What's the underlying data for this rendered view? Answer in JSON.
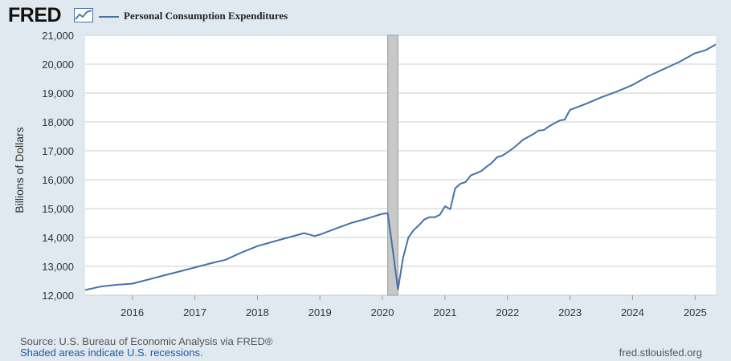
{
  "header": {
    "logo_text": "FRED",
    "legend_label": "Personal Consumption Expenditures"
  },
  "chart_data": {
    "type": "line",
    "title": "",
    "xlabel": "",
    "ylabel": "Billions of Dollars",
    "ylim": [
      12000,
      21000
    ],
    "yticks": [
      12000,
      13000,
      14000,
      15000,
      16000,
      17000,
      18000,
      19000,
      20000,
      21000
    ],
    "ytick_labels": [
      "12,000",
      "13,000",
      "14,000",
      "15,000",
      "16,000",
      "17,000",
      "18,000",
      "19,000",
      "20,000",
      "21,000"
    ],
    "xlim": [
      "2015-04-01",
      "2025-05-01"
    ],
    "xtick_labels": [
      "2016",
      "2017",
      "2018",
      "2019",
      "2020",
      "2021",
      "2022",
      "2023",
      "2024",
      "2025"
    ],
    "grid": true,
    "legend": "top-left",
    "recessions": [
      {
        "start": "2020-02-01",
        "end": "2020-04-01"
      }
    ],
    "series": [
      {
        "name": "Personal Consumption Expenditures",
        "color": "#4572a7",
        "x": [
          "2015-04-01",
          "2015-07-01",
          "2015-10-01",
          "2016-01-01",
          "2016-04-01",
          "2016-07-01",
          "2016-10-01",
          "2017-01-01",
          "2017-04-01",
          "2017-07-01",
          "2017-10-01",
          "2018-01-01",
          "2018-04-01",
          "2018-07-01",
          "2018-10-01",
          "2018-12-01",
          "2019-01-01",
          "2019-04-01",
          "2019-07-01",
          "2019-10-01",
          "2020-01-01",
          "2020-02-01",
          "2020-03-01",
          "2020-04-01",
          "2020-05-01",
          "2020-06-01",
          "2020-07-01",
          "2020-08-01",
          "2020-09-01",
          "2020-10-01",
          "2020-11-01",
          "2020-12-01",
          "2021-01-01",
          "2021-02-01",
          "2021-03-01",
          "2021-04-01",
          "2021-05-01",
          "2021-06-01",
          "2021-07-01",
          "2021-08-01",
          "2021-09-01",
          "2021-10-01",
          "2021-11-01",
          "2021-12-01",
          "2022-01-01",
          "2022-02-01",
          "2022-03-01",
          "2022-04-01",
          "2022-05-01",
          "2022-06-01",
          "2022-07-01",
          "2022-08-01",
          "2022-09-01",
          "2022-10-01",
          "2022-11-01",
          "2022-12-01",
          "2023-01-01",
          "2023-04-01",
          "2023-07-01",
          "2023-10-01",
          "2024-01-01",
          "2024-04-01",
          "2024-07-01",
          "2024-10-01",
          "2025-01-01",
          "2025-03-01",
          "2025-05-01"
        ],
        "values": [
          12180,
          12300,
          12360,
          12400,
          12540,
          12680,
          12820,
          12960,
          13100,
          13230,
          13480,
          13700,
          13850,
          14000,
          14150,
          14050,
          14100,
          14300,
          14500,
          14650,
          14820,
          14840,
          13600,
          12200,
          13300,
          14000,
          14250,
          14420,
          14620,
          14700,
          14700,
          14780,
          15080,
          14980,
          15700,
          15860,
          15920,
          16150,
          16220,
          16300,
          16450,
          16580,
          16780,
          16830,
          16950,
          17080,
          17220,
          17380,
          17480,
          17580,
          17700,
          17720,
          17850,
          17950,
          18050,
          18080,
          18420,
          18620,
          18850,
          19050,
          19280,
          19580,
          19830,
          20080,
          20380,
          20480,
          20680
        ]
      }
    ]
  },
  "footer": {
    "source": "Source: U.S. Bureau of Economic Analysis via FRED®",
    "recession_note": "Shaded areas indicate U.S. recessions.",
    "site": "fred.stlouisfed.org"
  }
}
